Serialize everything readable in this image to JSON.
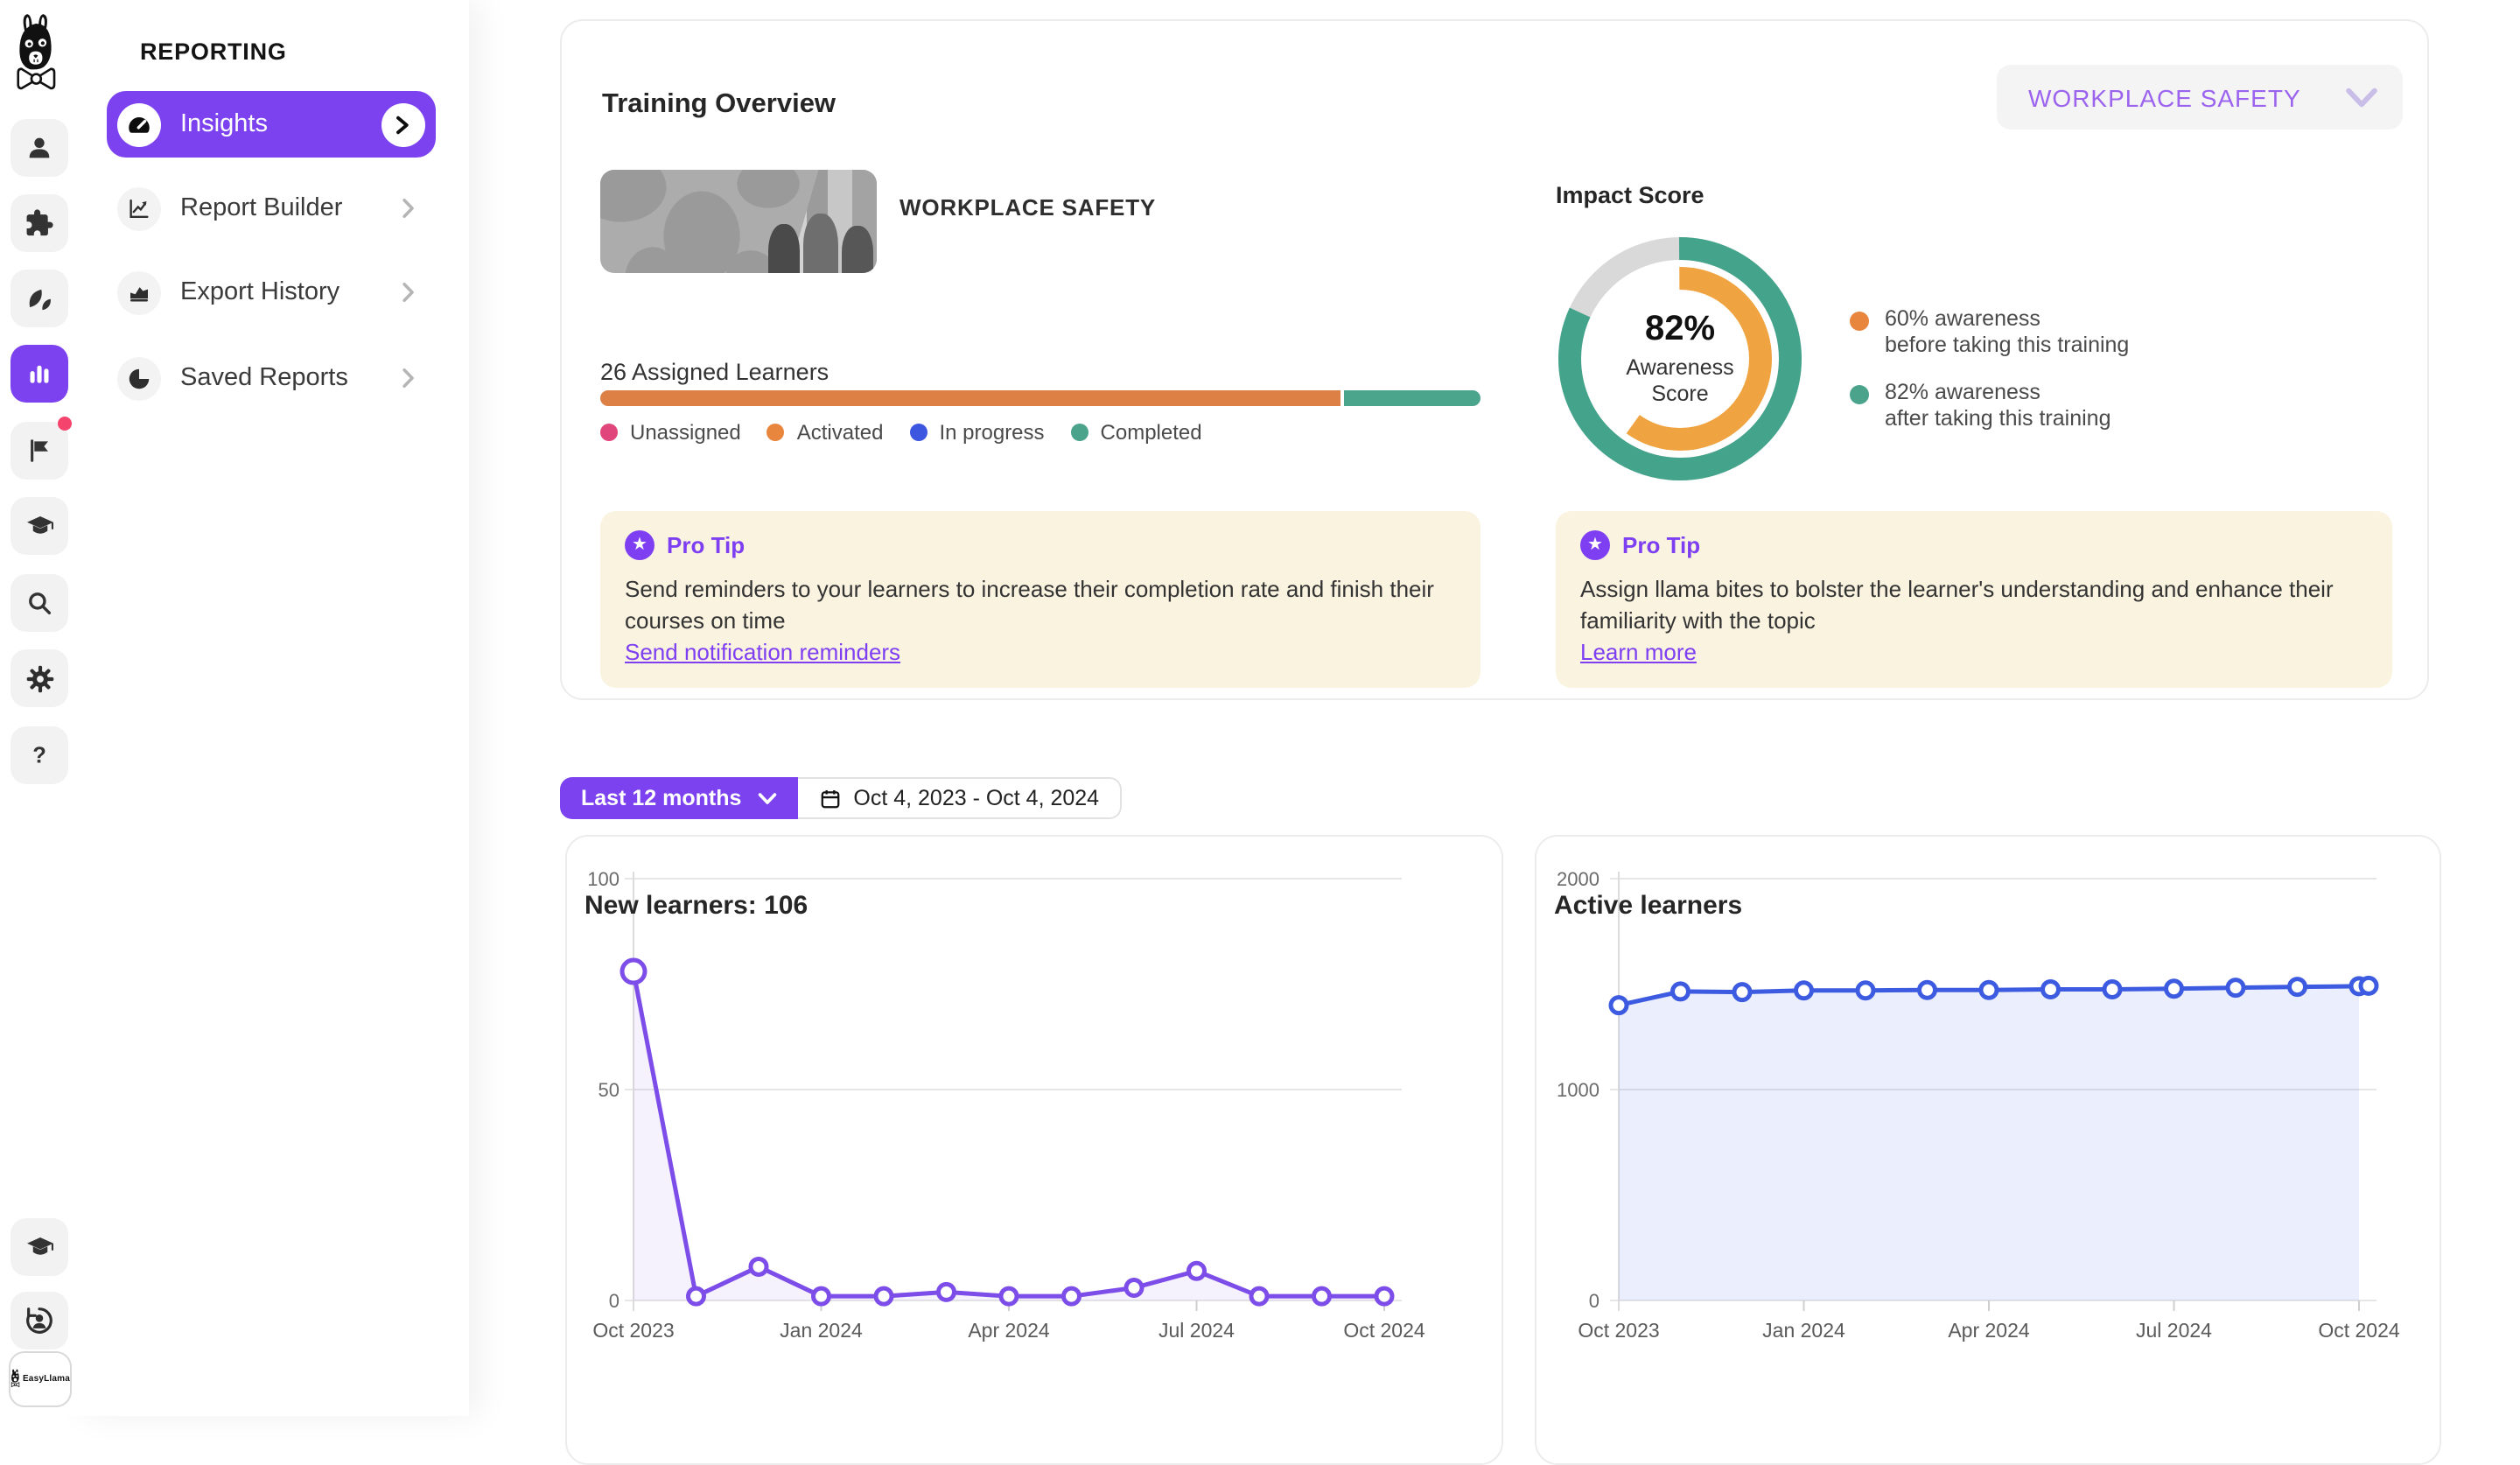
{
  "app": {
    "name": "EasyLlama"
  },
  "rail": {
    "logo": "easyllama-llama-logo",
    "top_icons": [
      "users-icon",
      "integrations-puzzle-icon",
      "llama-bites-leaves-icon",
      "reporting-bar-chart-icon",
      "flags-icon",
      "courses-graduation-cap-icon",
      "search-icon",
      "settings-gear-icon",
      "help-question-icon"
    ],
    "active_icon": "reporting-bar-chart-icon",
    "bottom_icons": [
      "training-graduation-cap-icon",
      "account-sync-icon"
    ],
    "badge_label": "EasyLlama"
  },
  "icons": {
    "star": "★",
    "question": "?"
  },
  "reporting": {
    "title": "REPORTING",
    "items": [
      {
        "label": "Insights",
        "active": true
      },
      {
        "label": "Report Builder",
        "active": false
      },
      {
        "label": "Export History",
        "active": false
      },
      {
        "label": "Saved Reports",
        "active": false
      }
    ]
  },
  "overview": {
    "title": "Training Overview",
    "course_filter": {
      "value": "WORKPLACE SAFETY"
    },
    "course_name": "WORKPLACE SAFETY",
    "assigned": {
      "label": "26 Assigned Learners",
      "segments": [
        {
          "name": "Activated",
          "color": "#DD8046",
          "pct": 84.5
        },
        {
          "name": "Completed",
          "color": "#4BA58C",
          "pct": 15.5
        }
      ],
      "legend": [
        {
          "label": "Unassigned",
          "color": "#E0457B"
        },
        {
          "label": "Activated",
          "color": "#E8863E"
        },
        {
          "label": "In progress",
          "color": "#3D56E0"
        },
        {
          "label": "Completed",
          "color": "#4AA38A"
        }
      ]
    },
    "pro_tip_left": {
      "title": "Pro Tip",
      "text": "Send reminders to your learners to increase their completion rate and finish their courses on time",
      "link": "Send notification reminders"
    },
    "impact": {
      "title": "Impact Score",
      "center_value": "82%",
      "center_label": "Awareness Score",
      "outer_pct": 82,
      "inner_pct": 60,
      "outer_color": "#44A38B",
      "inner_color": "#F0A441",
      "track_color": "#D9D9D9",
      "legend": [
        {
          "color": "#E8863E",
          "line1": "60% awareness",
          "line2": "before taking this training"
        },
        {
          "color": "#4AA38A",
          "line1": "82% awareness",
          "line2": "after taking this training"
        }
      ]
    },
    "pro_tip_right": {
      "title": "Pro Tip",
      "text": "Assign llama bites to bolster the learner's understanding and enhance their familiarity with the topic",
      "link": "Learn more"
    }
  },
  "filters": {
    "range": "Last 12 months",
    "date_range": "Oct 4, 2023 - Oct 4, 2024"
  },
  "chart_data": [
    {
      "type": "line",
      "title": "New learners: 106",
      "x": [
        "Oct 2023",
        "Nov 2023",
        "Dec 2023",
        "Jan 2024",
        "Feb 2024",
        "Mar 2024",
        "Apr 2024",
        "May 2024",
        "Jun 2024",
        "Jul 2024",
        "Aug 2024",
        "Sep 2024",
        "Oct 2024"
      ],
      "values": [
        78,
        1,
        8,
        1,
        1,
        2,
        1,
        1,
        3,
        7,
        1,
        1,
        1
      ],
      "ylim": [
        0,
        100
      ],
      "yticks": [
        0,
        50,
        100
      ],
      "x_tick_indices": [
        0,
        3,
        6,
        9,
        12
      ],
      "x_tick_labels": [
        "Oct 2023",
        "Jan 2024",
        "Apr 2024",
        "Jul 2024",
        "Oct 2024"
      ],
      "grid": true,
      "legend": "none",
      "line_color": "#7C4DE8",
      "fill_color": "rgba(124,77,232,0.08)",
      "marker": "open-circle",
      "emphasize_first": true,
      "double_end_marker": false
    },
    {
      "type": "line",
      "title": "Active learners",
      "x": [
        "Oct 2023",
        "Nov 2023",
        "Dec 2023",
        "Jan 2024",
        "Feb 2024",
        "Mar 2024",
        "Apr 2024",
        "May 2024",
        "Jun 2024",
        "Jul 2024",
        "Aug 2024",
        "Sep 2024",
        "Oct 2024"
      ],
      "values": [
        1400,
        1465,
        1462,
        1470,
        1470,
        1472,
        1472,
        1475,
        1475,
        1478,
        1483,
        1487,
        1490
      ],
      "extra_end_value": 1492,
      "ylim": [
        0,
        2000
      ],
      "yticks": [
        0,
        1000,
        2000
      ],
      "x_tick_indices": [
        0,
        3,
        6,
        9,
        12
      ],
      "x_tick_labels": [
        "Oct 2023",
        "Jan 2024",
        "Apr 2024",
        "Jul 2024",
        "Oct 2024"
      ],
      "grid": true,
      "legend": "none",
      "line_color": "#3D5BE0",
      "fill_color": "rgba(61,91,224,0.10)",
      "marker": "open-circle",
      "emphasize_first": false,
      "double_end_marker": true
    }
  ],
  "colors": {
    "accent_purple": "#7C42F0",
    "link_purple": "#7E3FF2",
    "cream": "#FAF3E0",
    "notification_red": "#F4436C"
  }
}
